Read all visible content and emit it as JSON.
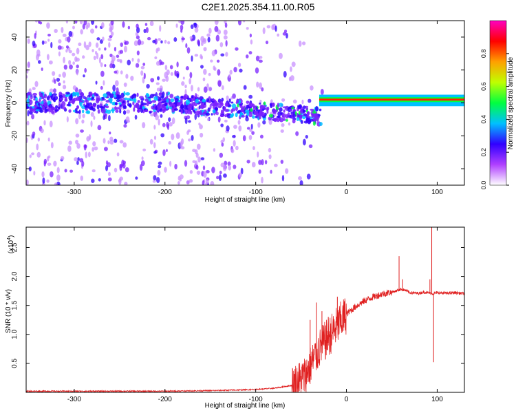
{
  "page": {
    "title": "C2E1.2025.354.11.00.R05"
  },
  "chart_data": [
    {
      "type": "heatmap",
      "xlabel": "Height of straight line (km)",
      "ylabel": "Frequency (Hz)",
      "xlim": [
        -353,
        130
      ],
      "ylim": [
        -50,
        50
      ],
      "xticks": [
        -300,
        -200,
        -100,
        0,
        100
      ],
      "yticks": [
        -40,
        -20,
        0,
        20,
        40
      ],
      "colorbar": {
        "label": "Normalized spectral amplitude",
        "range": [
          0,
          1
        ],
        "ticks": [
          0.0,
          0.2,
          0.4,
          0.6,
          0.8
        ],
        "colors": [
          "#ffffff",
          "#b040ff",
          "#3000ff",
          "#00c0ff",
          "#00ff40",
          "#c0ff00",
          "#ffa000",
          "#ff0000",
          "#ff00c0"
        ]
      },
      "features": [
        {
          "x_range": [
            -353,
            -185
          ],
          "f_center": 0,
          "f_spread": 50,
          "level": "noise"
        },
        {
          "x_range": [
            -195,
            -30
          ],
          "f_center_start": 0,
          "f_center_end": -8,
          "level": "signal"
        },
        {
          "x_range": [
            -30,
            130
          ],
          "f_center": 2,
          "level": "strong"
        }
      ]
    },
    {
      "type": "line",
      "xlabel": "Height of straight line (km)",
      "ylabel": "SNR (10 * v/v)",
      "y_multiplier": "(x10",
      "y_multiplier_exp": "4",
      "multiplier_suffix": ")",
      "xlim": [
        -353,
        130
      ],
      "ylim": [
        0,
        2.85
      ],
      "xticks": [
        -300,
        -200,
        -100,
        0,
        100
      ],
      "yticks": [
        0.5,
        1.0,
        1.5,
        2.0,
        2.5
      ],
      "ytick_labels": [
        "0.5",
        "1.0",
        "1.5",
        "2.0",
        "2.5"
      ],
      "series": [
        {
          "color": "#e02020",
          "x": [
            -353,
            -300,
            -250,
            -200,
            -150,
            -120,
            -100,
            -80,
            -60,
            -50,
            -45,
            -40,
            -35,
            -30,
            -25,
            -20,
            -15,
            -10,
            -5,
            0,
            10,
            20,
            30,
            40,
            50,
            55,
            60,
            65,
            70,
            80,
            85,
            90,
            95,
            100,
            110,
            120,
            130
          ],
          "y": [
            0.02,
            0.02,
            0.02,
            0.02,
            0.03,
            0.04,
            0.05,
            0.07,
            0.12,
            0.22,
            0.3,
            0.45,
            0.6,
            0.75,
            0.85,
            0.95,
            1.05,
            1.15,
            1.25,
            1.35,
            1.48,
            1.58,
            1.65,
            1.7,
            1.73,
            1.75,
            1.78,
            1.76,
            1.72,
            1.71,
            1.73,
            1.72,
            1.7,
            1.72,
            1.71,
            1.72,
            1.7
          ],
          "spikes": [
            {
              "x": -40,
              "y": 1.25
            },
            {
              "x": -33,
              "y": 1.55
            },
            {
              "x": -27,
              "y": 1.4
            },
            {
              "x": -20,
              "y": 1.3
            },
            {
              "x": -10,
              "y": 1.65
            },
            {
              "x": -5,
              "y": 1.25
            },
            {
              "x": 58,
              "y": 2.35
            },
            {
              "x": 62,
              "y": 1.95
            },
            {
              "x": 94,
              "y": 2.85
            },
            {
              "x": 96,
              "y": 0.52
            },
            {
              "x": 92,
              "y": 1.95
            }
          ]
        }
      ]
    }
  ]
}
